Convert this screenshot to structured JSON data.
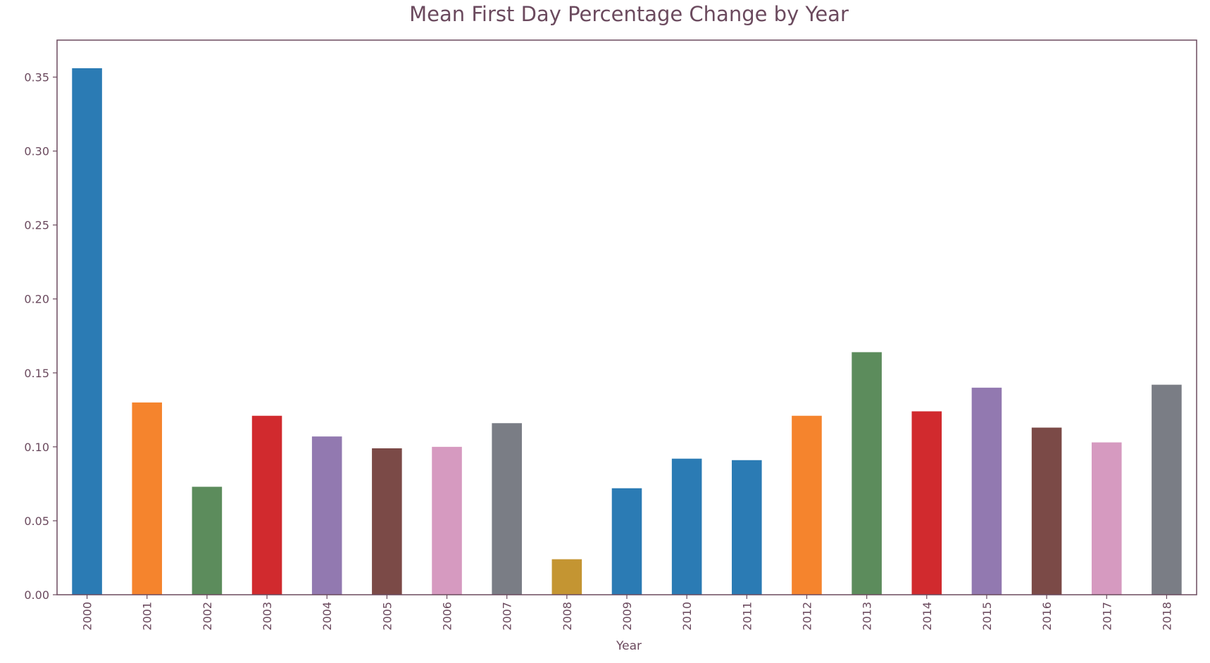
{
  "chart_data": {
    "type": "bar",
    "title": "Mean First Day Percentage Change by Year",
    "xlabel": "Year",
    "ylabel": "",
    "categories": [
      "2000",
      "2001",
      "2002",
      "2003",
      "2004",
      "2005",
      "2006",
      "2007",
      "2008",
      "2009",
      "2010",
      "2011",
      "2012",
      "2013",
      "2014",
      "2015",
      "2016",
      "2017",
      "2018"
    ],
    "values": [
      0.356,
      0.13,
      0.073,
      0.121,
      0.107,
      0.099,
      0.1,
      0.116,
      0.024,
      0.072,
      0.092,
      0.091,
      0.121,
      0.164,
      0.124,
      0.14,
      0.113,
      0.103,
      0.142
    ],
    "bar_colors": [
      "#2b7bb4",
      "#f5842d",
      "#5c8c5c",
      "#d12a2e",
      "#9279b0",
      "#7b4a47",
      "#d69ac0",
      "#7a7d85",
      "#c49532",
      "#2b7bb4",
      "#2b7bb4",
      "#2b7bb4",
      "#f5842d",
      "#5c8c5c",
      "#d12a2e",
      "#9279b0",
      "#7b4a47",
      "#d69ac0",
      "#7a7d85"
    ],
    "ylim": [
      0,
      0.375
    ],
    "yticks": [
      0.0,
      0.05,
      0.1,
      0.15,
      0.2,
      0.25,
      0.3,
      0.35
    ],
    "ytick_labels": [
      "0.00",
      "0.05",
      "0.10",
      "0.15",
      "0.20",
      "0.25",
      "0.30",
      "0.35"
    ],
    "grid": false,
    "legend": "none",
    "text_color": "#6b4a5e",
    "axis_color": "#6b4a5e"
  }
}
